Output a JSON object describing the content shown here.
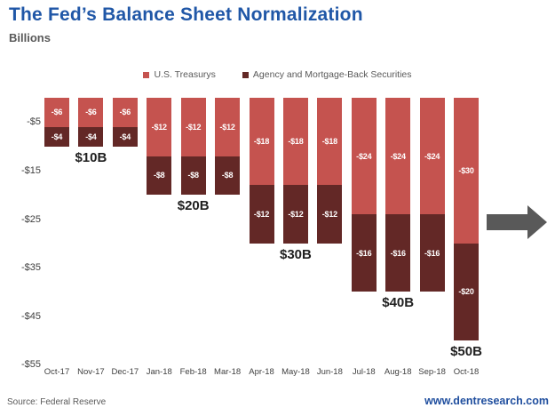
{
  "title": "The Fed’s Balance Sheet Normalization",
  "subtitle": "Billions",
  "legend": [
    {
      "label": "U.S. Treasurys",
      "color": "#C5534F"
    },
    {
      "label": "Agency and Mortgage-Back Securities",
      "color": "#632826"
    }
  ],
  "colors": {
    "title": "#2057A7",
    "website": "#1F4E9E",
    "arrow": "#595959",
    "axis_text": "#404040",
    "bar_label": "#FFFFFF"
  },
  "footer": {
    "source": "Source: Federal Reserve",
    "website": "www.dentresearch.com"
  },
  "chart_data": {
    "type": "bar",
    "stacked": true,
    "grid": false,
    "legend_position": "top",
    "title": "The Fed’s Balance Sheet Normalization",
    "ylabel": "Billions",
    "ylim": [
      0,
      -55
    ],
    "categories": [
      "Oct-17",
      "Nov-17",
      "Dec-17",
      "Jan-18",
      "Feb-18",
      "Mar-18",
      "Apr-18",
      "May-18",
      "Jun-18",
      "Jul-18",
      "Aug-18",
      "Sep-18",
      "Oct-18"
    ],
    "series": [
      {
        "name": "U.S. Treasurys",
        "color": "#C5534F",
        "values": [
          -6,
          -6,
          -6,
          -12,
          -12,
          -12,
          -18,
          -18,
          -18,
          -24,
          -24,
          -24,
          -30
        ]
      },
      {
        "name": "Agency and Mortgage-Back Securities",
        "color": "#632826",
        "values": [
          -4,
          -4,
          -4,
          -8,
          -8,
          -8,
          -12,
          -12,
          -12,
          -16,
          -16,
          -16,
          -20
        ]
      }
    ],
    "y_ticks": [
      {
        "label": "-$5",
        "value": -5
      },
      {
        "label": "-$15",
        "value": -15
      },
      {
        "label": "-$25",
        "value": -25
      },
      {
        "label": "-$35",
        "value": -35
      },
      {
        "label": "-$45",
        "value": -45
      },
      {
        "label": "-$55",
        "value": -55
      }
    ],
    "group_labels": [
      {
        "text": "$10B",
        "index": 1
      },
      {
        "text": "$20B",
        "index": 4
      },
      {
        "text": "$30B",
        "index": 7
      },
      {
        "text": "$40B",
        "index": 10
      },
      {
        "text": "$50B",
        "index": 12
      }
    ]
  }
}
